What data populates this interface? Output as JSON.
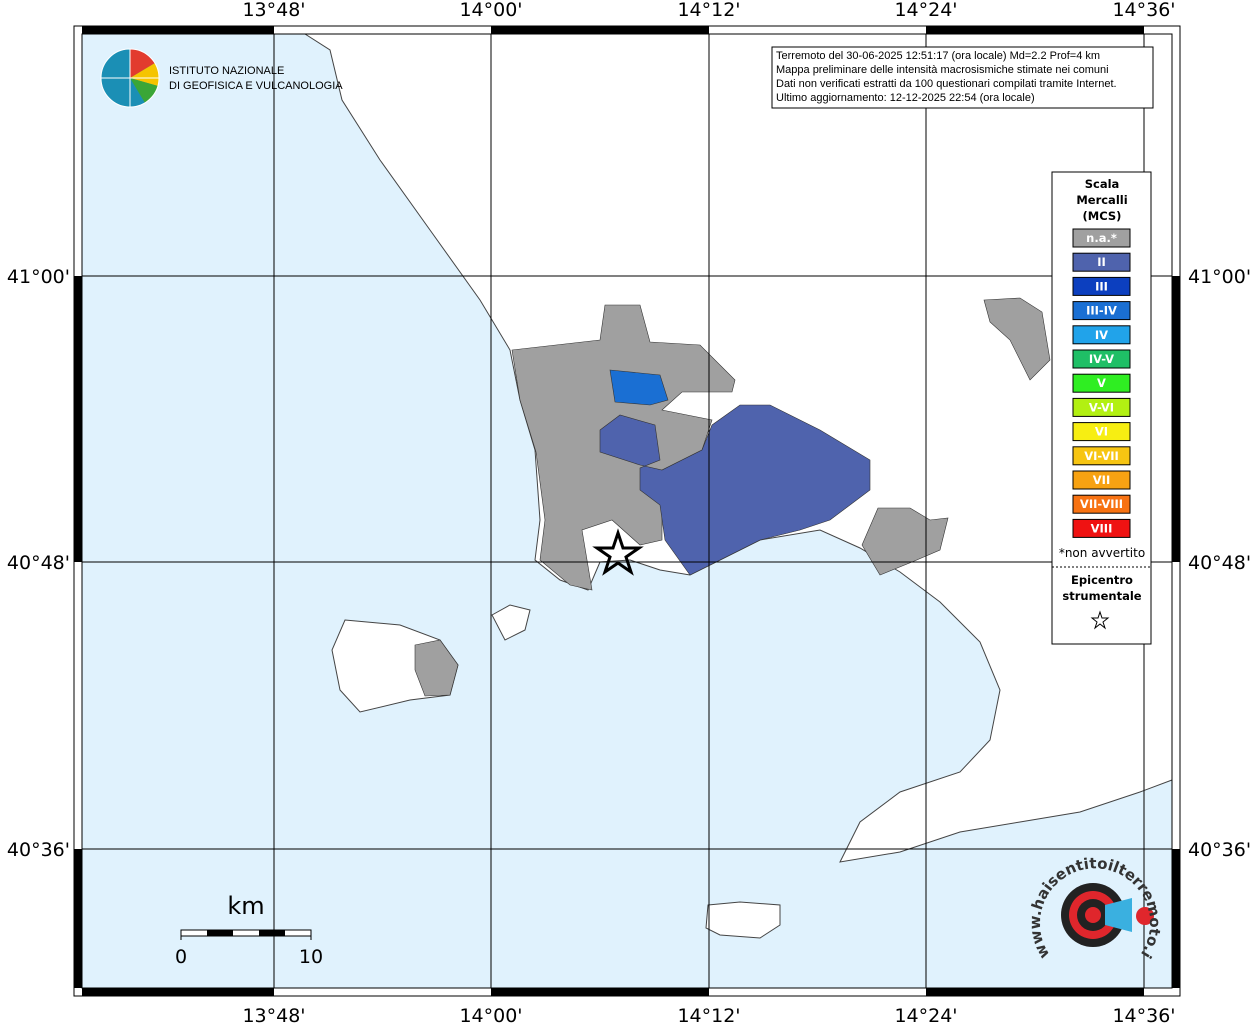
{
  "map": {
    "lon_labels": [
      "13°48'",
      "14°00'",
      "14°12'",
      "14°24'",
      "14°36'"
    ],
    "lat_labels": [
      "41°00'",
      "40°48'",
      "40°36'"
    ],
    "logo": {
      "line1": "ISTITUTO NAZIONALE",
      "line2": "DI GEOFISICA E VULCANOLOGIA"
    },
    "info": [
      "Terremoto del 30-06-2025 12:51:17 (ora locale) Md=2.2 Prof=4 km",
      "Mappa preliminare delle intensità macrosismiche stimate nei comuni",
      "Dati non verificati estratti da 100 questionari compilati tramite Internet.",
      "Ultimo aggiornamento: 12-12-2025 22:54 (ora locale)"
    ],
    "legend": {
      "title": [
        "Scala",
        "Mercalli",
        "(MCS)"
      ],
      "items": [
        {
          "label": "n.a.*",
          "color": "#a0a0a0"
        },
        {
          "label": "II",
          "color": "#4f63ad"
        },
        {
          "label": "III",
          "color": "#0c3fbf"
        },
        {
          "label": "III-IV",
          "color": "#1a6fd3"
        },
        {
          "label": "IV",
          "color": "#21a3ea"
        },
        {
          "label": "IV-V",
          "color": "#1fbf66"
        },
        {
          "label": "V",
          "color": "#2fee22"
        },
        {
          "label": "V-VI",
          "color": "#b2f012"
        },
        {
          "label": "VI",
          "color": "#f7ee12"
        },
        {
          "label": "VI-VII",
          "color": "#f7c512"
        },
        {
          "label": "VII",
          "color": "#f7a212"
        },
        {
          "label": "VII-VIII",
          "color": "#f77212"
        },
        {
          "label": "VIII",
          "color": "#ef1212"
        }
      ],
      "note": "*non avvertito",
      "epicenter": [
        "Epicentro",
        "strumentale"
      ]
    },
    "scale": {
      "unit": "km",
      "start": "0",
      "end": "10"
    },
    "watermark": "www.haisentitoilterremoto.it"
  }
}
